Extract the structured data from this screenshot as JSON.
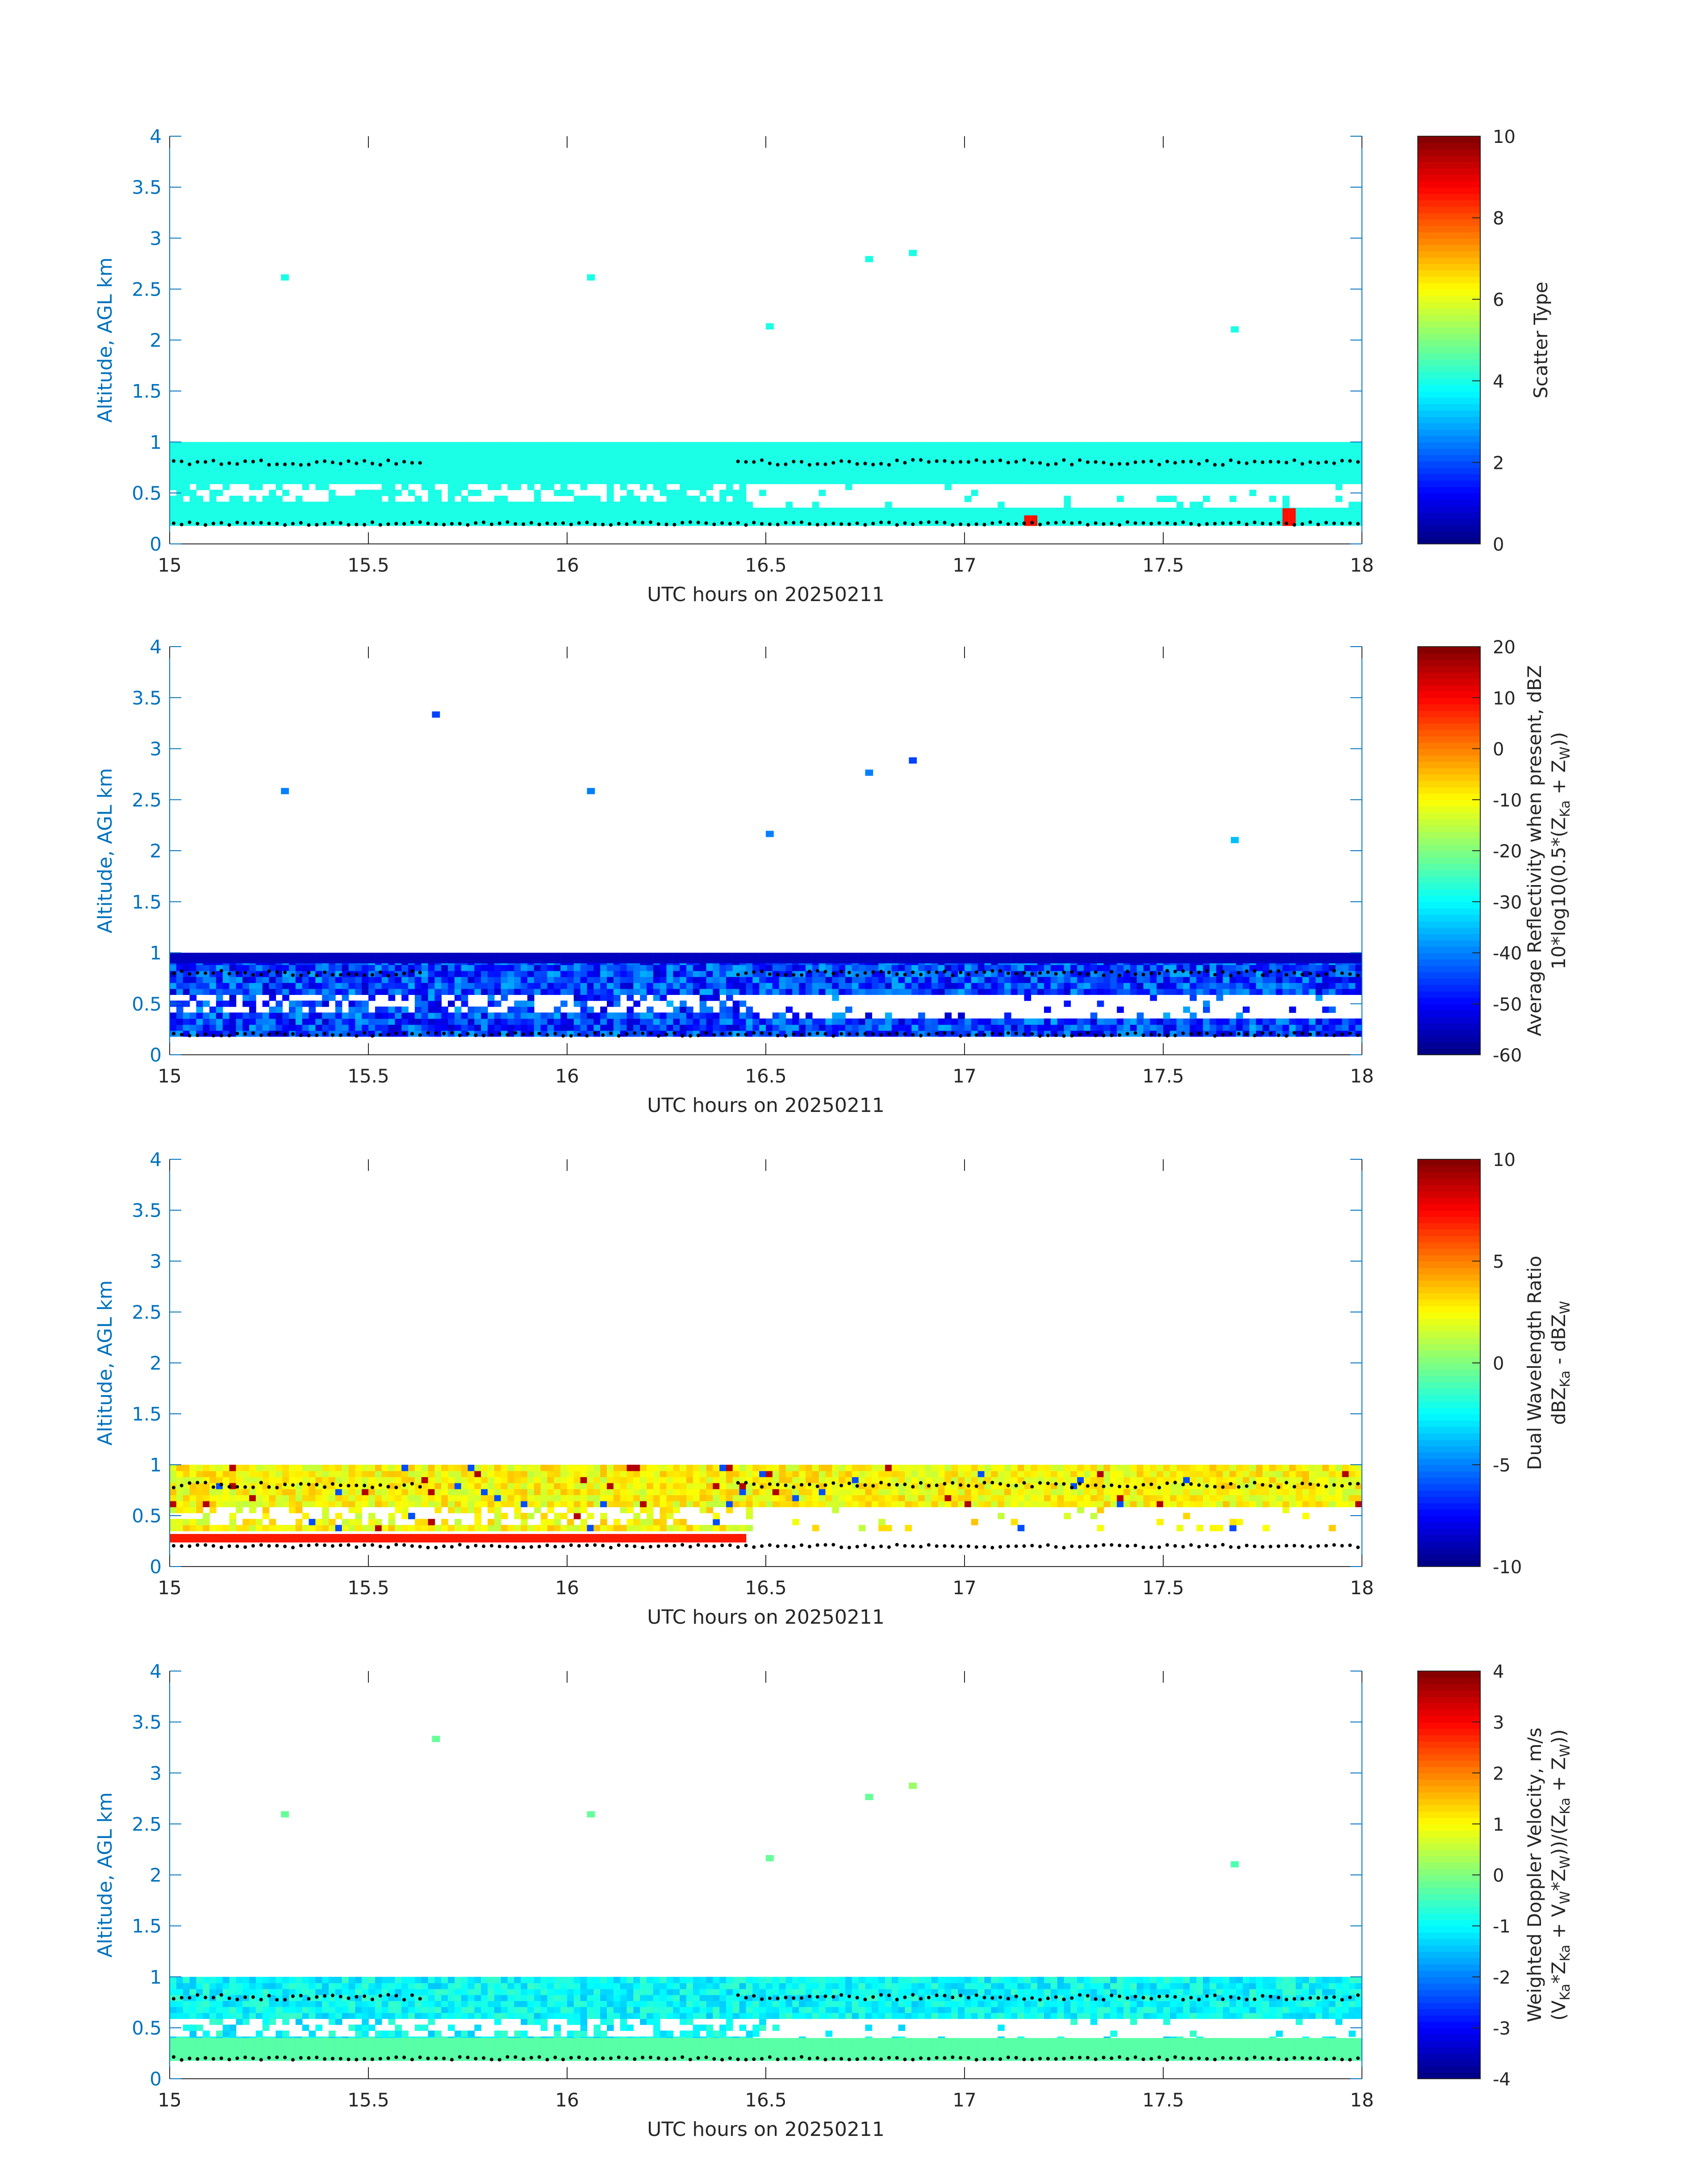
{
  "chart_data": [
    {
      "type": "heatmap",
      "xlabel": "UTC hours on 20250211",
      "ylabel": "Altitude, AGL km",
      "xlim": [
        15,
        18
      ],
      "ylim": [
        0,
        4
      ],
      "xticks": [
        "15",
        "15.5",
        "16",
        "16.5",
        "17",
        "17.5",
        "18"
      ],
      "yticks": [
        "0",
        "0.5",
        "1",
        "1.5",
        "2",
        "2.5",
        "3",
        "3.5",
        "4"
      ],
      "colorbar": {
        "label_lines": [
          "Scatter Type"
        ],
        "range": [
          0,
          10
        ],
        "ticks": [
          "0",
          "2",
          "4",
          "6",
          "8",
          "10"
        ]
      },
      "regions": [
        {
          "x": [
            15,
            18
          ],
          "y": [
            0.18,
            1.0
          ],
          "value": 4.0
        },
        {
          "x": [
            17.14,
            17.17
          ],
          "y": [
            0.18,
            0.28
          ],
          "value": 8.6
        },
        {
          "x": [
            17.8,
            17.82
          ],
          "y": [
            0.18,
            0.35
          ],
          "value": 8.6
        }
      ],
      "isolated_points": [
        {
          "x": 15.29,
          "y": 2.61,
          "value": 4.0
        },
        {
          "x": 16.06,
          "y": 2.61,
          "value": 4.0
        },
        {
          "x": 16.51,
          "y": 2.13,
          "value": 4.0
        },
        {
          "x": 16.76,
          "y": 2.79,
          "value": 4.0
        },
        {
          "x": 16.87,
          "y": 2.85,
          "value": 4.0
        },
        {
          "x": 17.68,
          "y": 2.1,
          "value": 4.0
        }
      ]
    },
    {
      "type": "heatmap",
      "xlabel": "UTC hours on 20250211",
      "ylabel": "Altitude, AGL km",
      "xlim": [
        15,
        18
      ],
      "ylim": [
        0,
        4
      ],
      "xticks": [
        "15",
        "15.5",
        "16",
        "16.5",
        "17",
        "17.5",
        "18"
      ],
      "yticks": [
        "0",
        "0.5",
        "1",
        "1.5",
        "2",
        "2.5",
        "3",
        "3.5",
        "4"
      ],
      "colorbar": {
        "label_lines": [
          "Average Reflectivity when present, dBZ",
          "10*log10(0.5*(Z",
          "Ka",
          " + Z",
          "W",
          "))"
        ],
        "range": [
          -60,
          20
        ],
        "ticks": [
          "-60",
          "-50",
          "-40",
          "-30",
          "-20",
          "-10",
          "0",
          "10",
          "20"
        ]
      },
      "regions": [
        {
          "x": [
            15,
            18
          ],
          "y": [
            0.18,
            1.0
          ],
          "value": -45
        },
        {
          "x": [
            15,
            18
          ],
          "y": [
            0.9,
            1.0
          ],
          "value": -55
        }
      ],
      "isolated_points": [
        {
          "x": 15.29,
          "y": 2.58,
          "value": -40
        },
        {
          "x": 15.67,
          "y": 3.33,
          "value": -45
        },
        {
          "x": 16.06,
          "y": 2.58,
          "value": -40
        },
        {
          "x": 16.51,
          "y": 2.16,
          "value": -40
        },
        {
          "x": 16.76,
          "y": 2.76,
          "value": -40
        },
        {
          "x": 16.87,
          "y": 2.88,
          "value": -45
        },
        {
          "x": 17.68,
          "y": 2.1,
          "value": -35
        }
      ]
    },
    {
      "type": "heatmap",
      "xlabel": "UTC hours on 20250211",
      "ylabel": "Altitude, AGL km",
      "xlim": [
        15,
        18
      ],
      "ylim": [
        0,
        4
      ],
      "xticks": [
        "15",
        "15.5",
        "16",
        "16.5",
        "17",
        "17.5",
        "18"
      ],
      "yticks": [
        "0",
        "0.5",
        "1",
        "1.5",
        "2",
        "2.5",
        "3",
        "3.5",
        "4"
      ],
      "colorbar": {
        "label_lines": [
          "Dual Wavelength Ratio",
          "dBZ",
          "Ka",
          " - dBZ",
          "W"
        ],
        "range": [
          -10,
          10
        ],
        "ticks": [
          "-10",
          "-5",
          "0",
          "5",
          "10"
        ]
      },
      "regions": [
        {
          "x": [
            15,
            18
          ],
          "y": [
            0.35,
            1.0
          ],
          "value": 2.5
        },
        {
          "x": [
            15,
            16.45
          ],
          "y": [
            0.24,
            0.32
          ],
          "value": 7
        }
      ],
      "isolated_points": []
    },
    {
      "type": "heatmap",
      "xlabel": "UTC hours on 20250211",
      "ylabel": "Altitude, AGL km",
      "xlim": [
        15,
        18
      ],
      "ylim": [
        0,
        4
      ],
      "xticks": [
        "15",
        "15.5",
        "16",
        "16.5",
        "17",
        "17.5",
        "18"
      ],
      "yticks": [
        "0",
        "0.5",
        "1",
        "1.5",
        "2",
        "2.5",
        "3",
        "3.5",
        "4"
      ],
      "colorbar": {
        "label_lines": [
          "Weighted Doppler Velocity, m/s",
          "(V",
          "Ka",
          "*Z",
          "Ka",
          " + V",
          "W",
          "*Z",
          "W",
          "))/(Z",
          "Ka",
          " + Z",
          "W",
          "))"
        ],
        "range": [
          -4,
          4
        ],
        "ticks": [
          "-4",
          "-3",
          "-2",
          "-1",
          "0",
          "1",
          "2",
          "3",
          "4"
        ]
      },
      "regions": [
        {
          "x": [
            15,
            18
          ],
          "y": [
            0.18,
            1.0
          ],
          "value": -1.0
        },
        {
          "x": [
            15,
            18
          ],
          "y": [
            0.18,
            0.4
          ],
          "value": -0.3
        }
      ],
      "isolated_points": [
        {
          "x": 15.29,
          "y": 2.59,
          "value": -0.2
        },
        {
          "x": 15.67,
          "y": 3.33,
          "value": -0.2
        },
        {
          "x": 16.06,
          "y": 2.59,
          "value": -0.2
        },
        {
          "x": 16.51,
          "y": 2.16,
          "value": -0.2
        },
        {
          "x": 16.76,
          "y": 2.76,
          "value": -0.2
        },
        {
          "x": 16.87,
          "y": 2.87,
          "value": 0.2
        },
        {
          "x": 17.68,
          "y": 2.1,
          "value": -0.4
        }
      ]
    }
  ]
}
